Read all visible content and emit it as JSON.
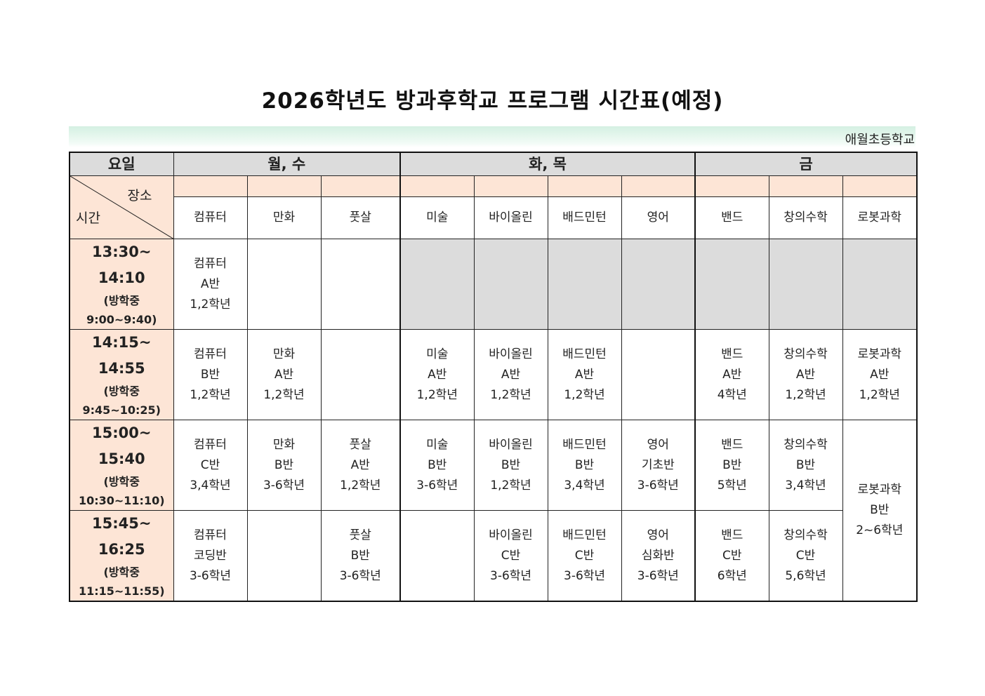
{
  "title": "2026학년도 방과후학교 프로그램 시간표(예정)",
  "school": "애월초등학교",
  "header": {
    "day_label": "요일",
    "place_label": "장소",
    "time_label": "시간",
    "days": [
      "월, 수",
      "화, 목",
      "금"
    ]
  },
  "subjects": [
    "컴퓨터",
    "만화",
    "풋살",
    "미술",
    "바이올린",
    "배드민턴",
    "영어",
    "밴드",
    "창의수학",
    "로봇과학"
  ],
  "schedule": [
    {
      "time_start": "13:30~",
      "time_end": "14:10",
      "break_label": "(방학중",
      "break_time": "9:00~9:40)",
      "cells": [
        {
          "lines": [
            "컴퓨터",
            "A반",
            "1,2학년"
          ]
        },
        {
          "lines": []
        },
        {
          "lines": []
        },
        {
          "lines": [],
          "shade": "gray"
        },
        {
          "lines": [],
          "shade": "gray"
        },
        {
          "lines": [],
          "shade": "gray"
        },
        {
          "lines": [],
          "shade": "gray"
        },
        {
          "lines": [],
          "shade": "gray"
        },
        {
          "lines": [],
          "shade": "gray"
        },
        {
          "lines": [],
          "shade": "gray"
        }
      ]
    },
    {
      "time_start": "14:15~",
      "time_end": "14:55",
      "break_label": "(방학중",
      "break_time": "9:45~10:25)",
      "cells": [
        {
          "lines": [
            "컴퓨터",
            "B반",
            "1,2학년"
          ]
        },
        {
          "lines": [
            "만화",
            "A반",
            "1,2학년"
          ]
        },
        {
          "lines": []
        },
        {
          "lines": [
            "미술",
            "A반",
            "1,2학년"
          ]
        },
        {
          "lines": [
            "바이올린",
            "A반",
            "1,2학년"
          ]
        },
        {
          "lines": [
            "배드민턴",
            "A반",
            "1,2학년"
          ]
        },
        {
          "lines": []
        },
        {
          "lines": [
            "밴드",
            "A반",
            "4학년"
          ]
        },
        {
          "lines": [
            "창의수학",
            "A반",
            "1,2학년"
          ]
        },
        {
          "lines": [
            "로봇과학",
            "A반",
            "1,2학년"
          ]
        }
      ]
    },
    {
      "time_start": "15:00~",
      "time_end": "15:40",
      "break_label": "(방학중",
      "break_time": "10:30~11:10)",
      "cells": [
        {
          "lines": [
            "컴퓨터",
            "C반",
            "3,4학년"
          ]
        },
        {
          "lines": [
            "만화",
            "B반",
            "3-6학년"
          ]
        },
        {
          "lines": [
            "풋살",
            "A반",
            "1,2학년"
          ]
        },
        {
          "lines": [
            "미술",
            "B반",
            "3-6학년"
          ]
        },
        {
          "lines": [
            "바이올린",
            "B반",
            "1,2학년"
          ]
        },
        {
          "lines": [
            "배드민턴",
            "B반",
            "3,4학년"
          ]
        },
        {
          "lines": [
            "영어",
            "기초반",
            "3-6학년"
          ]
        },
        {
          "lines": [
            "밴드",
            "B반",
            "5학년"
          ]
        },
        {
          "lines": [
            "창의수학",
            "B반",
            "3,4학년"
          ]
        },
        {
          "lines": [
            "로봇과학",
            "B반",
            "2~6학년"
          ],
          "span_rows": 2
        }
      ]
    },
    {
      "time_start": "15:45~",
      "time_end": "16:25",
      "break_label": "(방학중",
      "break_time": "11:15~11:55)",
      "cells": [
        {
          "lines": [
            "컴퓨터",
            "코딩반",
            "3-6학년"
          ]
        },
        {
          "lines": []
        },
        {
          "lines": [
            "풋살",
            "B반",
            "3-6학년"
          ]
        },
        {
          "lines": []
        },
        {
          "lines": [
            "바이올린",
            "C반",
            "3-6학년"
          ]
        },
        {
          "lines": [
            "배드민턴",
            "C반",
            "3-6학년"
          ]
        },
        {
          "lines": [
            "영어",
            "심화반",
            "3-6학년"
          ]
        },
        {
          "lines": [
            "밴드",
            "C반",
            "6학년"
          ]
        },
        {
          "lines": [
            "창의수학",
            "C반",
            "5,6학년"
          ]
        }
      ]
    }
  ]
}
